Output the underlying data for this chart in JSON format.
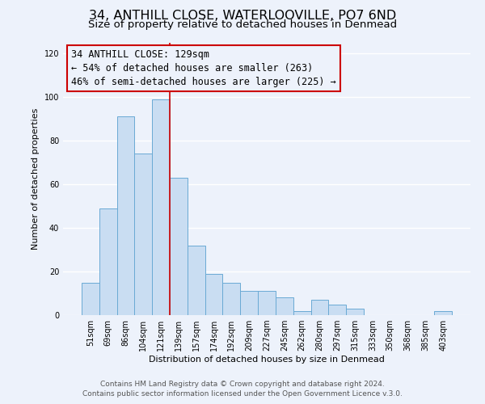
{
  "title1": "34, ANTHILL CLOSE, WATERLOOVILLE, PO7 6ND",
  "title2": "Size of property relative to detached houses in Denmead",
  "xlabel": "Distribution of detached houses by size in Denmead",
  "ylabel": "Number of detached properties",
  "bar_labels": [
    "51sqm",
    "69sqm",
    "86sqm",
    "104sqm",
    "121sqm",
    "139sqm",
    "157sqm",
    "174sqm",
    "192sqm",
    "209sqm",
    "227sqm",
    "245sqm",
    "262sqm",
    "280sqm",
    "297sqm",
    "315sqm",
    "333sqm",
    "350sqm",
    "368sqm",
    "385sqm",
    "403sqm"
  ],
  "bar_heights": [
    15,
    49,
    91,
    74,
    99,
    63,
    32,
    19,
    15,
    11,
    11,
    8,
    2,
    7,
    5,
    3,
    0,
    0,
    0,
    0,
    2
  ],
  "bar_color": "#c9ddf2",
  "bar_edge_color": "#6aaad4",
  "ylim": [
    0,
    125
  ],
  "yticks": [
    0,
    20,
    40,
    60,
    80,
    100,
    120
  ],
  "vline_x_index": 4.5,
  "vline_color": "#cc0000",
  "annotation_lines": [
    "34 ANTHILL CLOSE: 129sqm",
    "← 54% of detached houses are smaller (263)",
    "46% of semi-detached houses are larger (225) →"
  ],
  "box_edge_color": "#cc0000",
  "footer1": "Contains HM Land Registry data © Crown copyright and database right 2024.",
  "footer2": "Contains public sector information licensed under the Open Government Licence v.3.0.",
  "bg_color": "#edf2fb",
  "grid_color": "#ffffff",
  "title1_fontsize": 11.5,
  "title2_fontsize": 9.5,
  "annotation_fontsize": 8.5,
  "axis_label_fontsize": 8,
  "tick_fontsize": 7,
  "footer_fontsize": 6.5
}
